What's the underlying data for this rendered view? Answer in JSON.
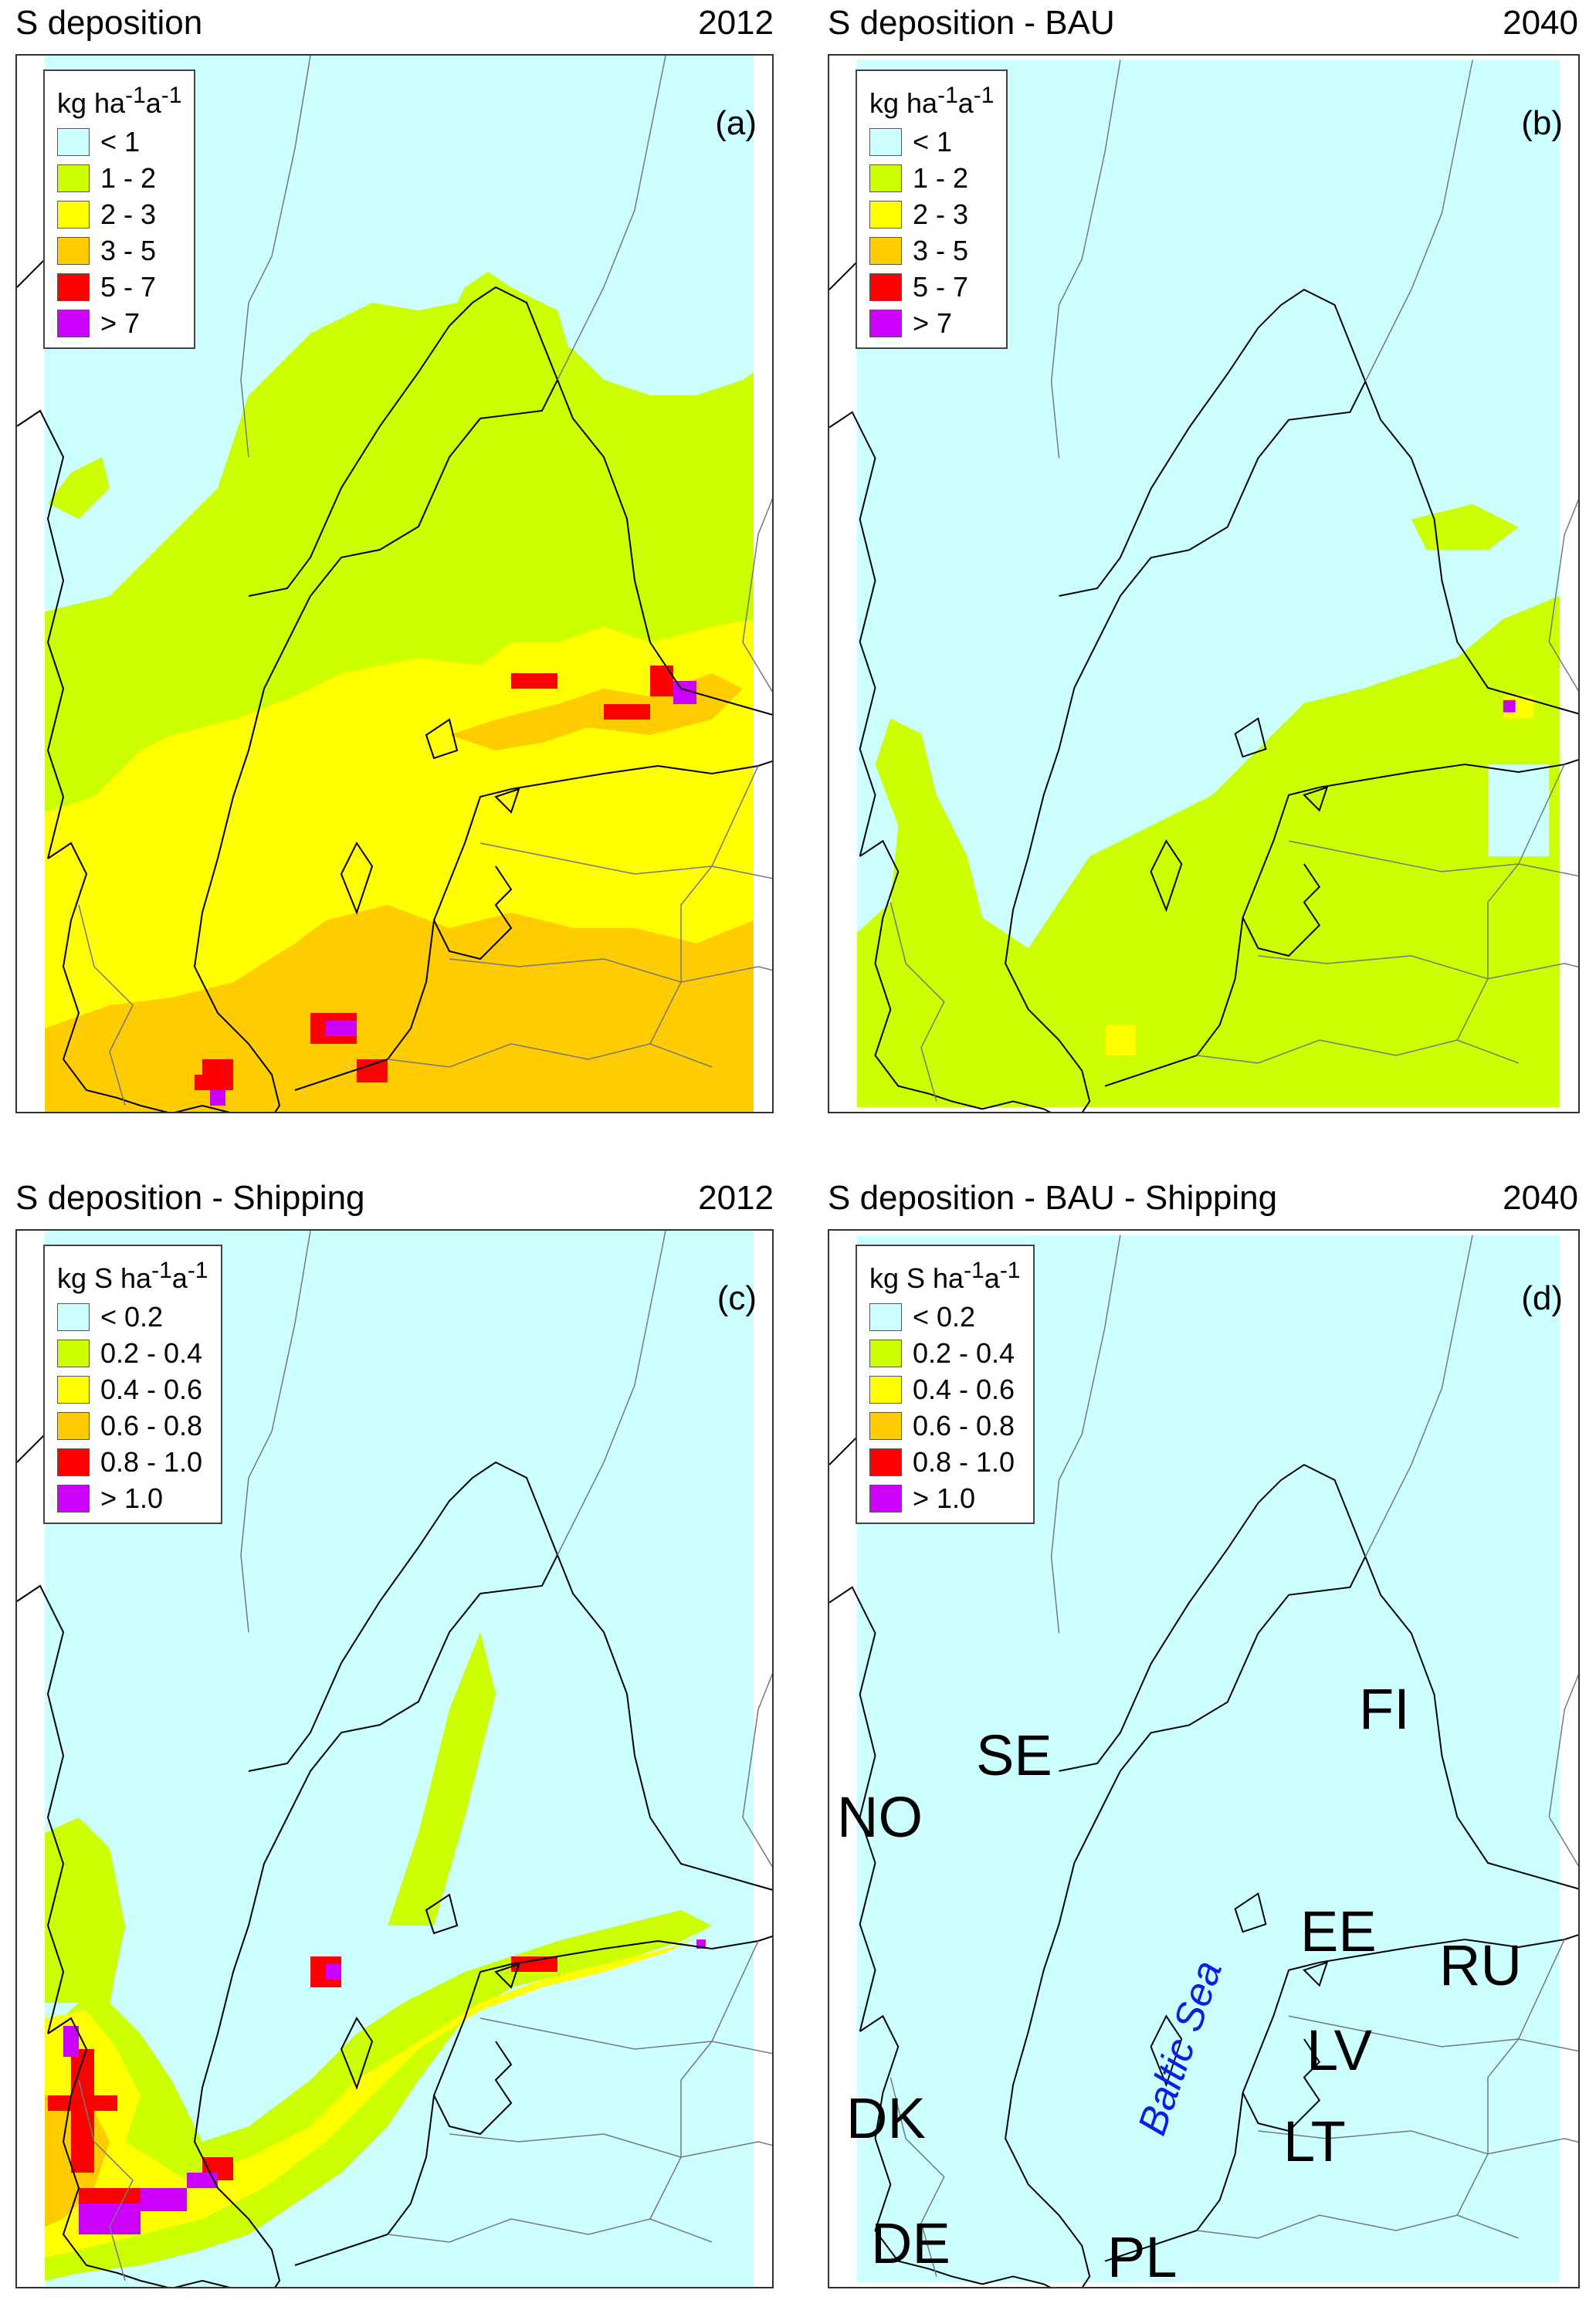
{
  "colors": {
    "c1": "#ccffff",
    "c2": "#ccff00",
    "c3": "#ffff00",
    "c4": "#ffcc00",
    "c5": "#ff0000",
    "c6": "#cc00ff",
    "baltic_label": "#0a1ee6"
  },
  "panels": {
    "a": {
      "title": "S deposition",
      "year": "2012",
      "label": "(a)",
      "unit_main": "kg  ha",
      "unit_sup1": "-1",
      "unit_mid": "a",
      "unit_sup2": "-1",
      "legend": [
        "< 1",
        "1 - 2",
        "2 - 3",
        "3 - 5",
        "5 - 7",
        "> 7"
      ]
    },
    "b": {
      "title": "S deposition - BAU",
      "year": "2040",
      "label": "(b)",
      "unit_main": "kg  ha",
      "unit_sup1": "-1",
      "unit_mid": "a",
      "unit_sup2": "-1",
      "legend": [
        "< 1",
        "1 - 2",
        "2 - 3",
        "3 - 5",
        "5 - 7",
        "> 7"
      ]
    },
    "c": {
      "title": "S deposition - Shipping",
      "year": "2012",
      "label": "(c)",
      "unit_main": "kg S ha",
      "unit_sup1": "-1",
      "unit_mid": "a",
      "unit_sup2": "-1",
      "legend": [
        "< 0.2",
        "0.2 - 0.4",
        "0.4 - 0.6",
        "0.6 - 0.8",
        "0.8 - 1.0",
        "> 1.0"
      ]
    },
    "d": {
      "title": "S deposition - BAU - Shipping",
      "year": "2040",
      "label": "(d)",
      "unit_main": "kg S ha",
      "unit_sup1": "-1",
      "unit_mid": "a",
      "unit_sup2": "-1",
      "legend": [
        "< 0.2",
        "0.2 - 0.4",
        "0.4 - 0.6",
        "0.6 - 0.8",
        "0.8 - 1.0",
        "> 1.0"
      ]
    }
  },
  "map_labels": {
    "no": "NO",
    "se": "SE",
    "fi": "FI",
    "ee": "EE",
    "ru": "RU",
    "lv": "LV",
    "lt": "LT",
    "dk": "DK",
    "de": "DE",
    "pl": "PL",
    "baltic": "Baltic Sea"
  }
}
